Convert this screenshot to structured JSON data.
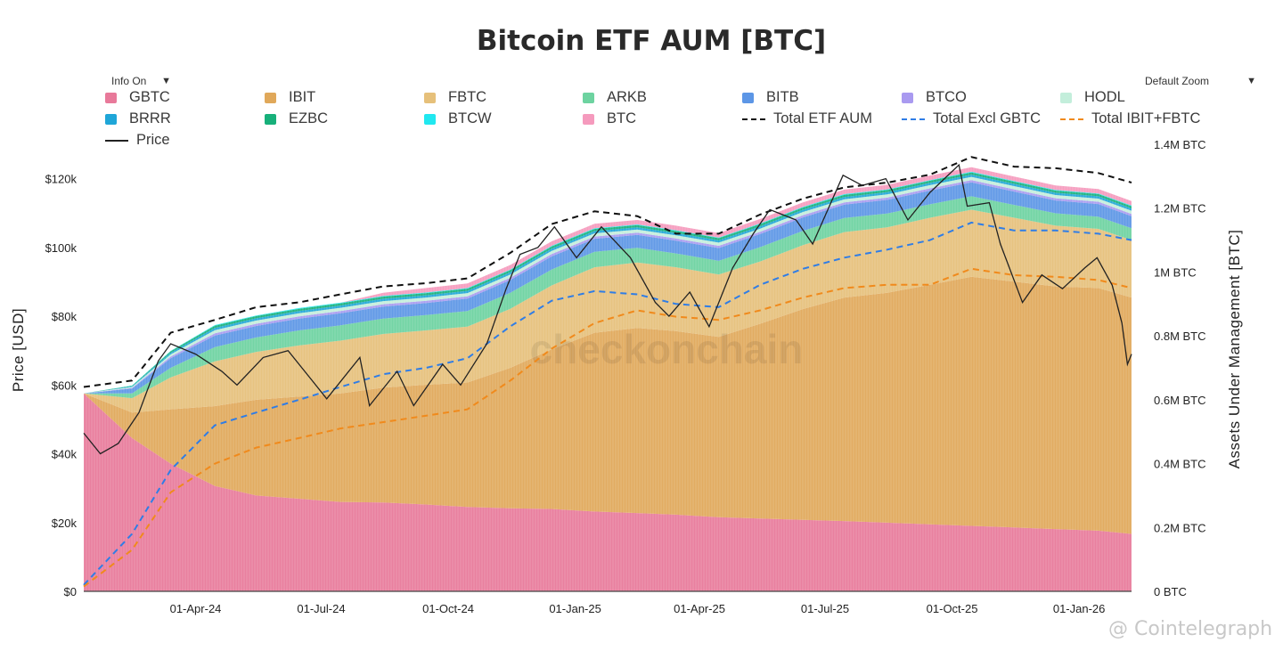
{
  "title": "Bitcoin ETF AUM [BTC]",
  "controls": {
    "info_label": "Info On",
    "zoom_label": "Default Zoom",
    "dropdown_arrow": "▼"
  },
  "watermark": "checkonchain",
  "credit": "@ Cointelegraph",
  "legend": [
    {
      "name": "GBTC",
      "kind": "box",
      "color": "#e8799a"
    },
    {
      "name": "IBIT",
      "kind": "box",
      "color": "#e0a85a"
    },
    {
      "name": "FBTC",
      "kind": "box",
      "color": "#e6c07a"
    },
    {
      "name": "ARKB",
      "kind": "box",
      "color": "#6dd3a0"
    },
    {
      "name": "BITB",
      "kind": "box",
      "color": "#5c96e6"
    },
    {
      "name": "BTCO",
      "kind": "box",
      "color": "#a99af0"
    },
    {
      "name": "HODL",
      "kind": "box",
      "color": "#c3eedb"
    },
    {
      "name": "BRRR",
      "kind": "box",
      "color": "#1fa6d8"
    },
    {
      "name": "EZBC",
      "kind": "box",
      "color": "#17b07a"
    },
    {
      "name": "BTCW",
      "kind": "box",
      "color": "#20e8f0"
    },
    {
      "name": "BTC",
      "kind": "box",
      "color": "#f59abd"
    },
    {
      "name": "Total ETF AUM",
      "kind": "dash",
      "color": "#111111"
    },
    {
      "name": "Total Excl GBTC",
      "kind": "dash",
      "color": "#2f7de6"
    },
    {
      "name": "Total IBIT+FBTC",
      "kind": "dash",
      "color": "#f08a1c"
    },
    {
      "name": "Price",
      "kind": "solid",
      "color": "#222222"
    }
  ],
  "chart_data": {
    "type": "area",
    "title": "Bitcoin ETF AUM [BTC]",
    "ylabel_left": "Price [USD]",
    "ylabel_right": "Assets Under Management [BTC]",
    "ylim_left": [
      0,
      130000
    ],
    "ylim_right": [
      0,
      1400000
    ],
    "left_ticks": [
      "$0",
      "$20k",
      "$40k",
      "$60k",
      "$80k",
      "$100k",
      "$120k"
    ],
    "right_ticks": [
      "0 BTC",
      "0.2M BTC",
      "0.4M BTC",
      "0.6M BTC",
      "0.8M BTC",
      "1M BTC",
      "1.2M BTC",
      "1.4M BTC"
    ],
    "x_ticks": [
      {
        "label": "01-Apr-24",
        "date": "2024-04-01"
      },
      {
        "label": "01-Jul-24",
        "date": "2024-07-01"
      },
      {
        "label": "01-Oct-24",
        "date": "2024-10-01"
      },
      {
        "label": "01-Jan-25",
        "date": "2025-01-01"
      },
      {
        "label": "01-Apr-25",
        "date": "2025-04-01"
      },
      {
        "label": "01-Jul-25",
        "date": "2025-07-01"
      },
      {
        "label": "01-Oct-25",
        "date": "2025-10-01"
      },
      {
        "label": "01-Jan-26",
        "date": "2026-01-01"
      }
    ],
    "x_start": "2024-01-11",
    "x_end": "2026-02-08",
    "dates": [
      "2024-01-11",
      "2024-02-15",
      "2024-03-14",
      "2024-04-15",
      "2024-05-15",
      "2024-06-15",
      "2024-07-15",
      "2024-08-15",
      "2024-09-15",
      "2024-10-15",
      "2024-11-15",
      "2024-12-15",
      "2025-01-15",
      "2025-02-15",
      "2025-03-15",
      "2025-04-15",
      "2025-05-15",
      "2025-06-15",
      "2025-07-15",
      "2025-08-15",
      "2025-09-15",
      "2025-10-15",
      "2025-11-15",
      "2025-12-15",
      "2026-01-15",
      "2026-02-08"
    ],
    "series": [
      {
        "name": "GBTC",
        "color": "#e8799a",
        "values": [
          620000,
          480000,
          400000,
          330000,
          300000,
          290000,
          280000,
          278000,
          272000,
          264000,
          260000,
          258000,
          250000,
          245000,
          240000,
          232000,
          228000,
          224000,
          220000,
          215000,
          210000,
          205000,
          200000,
          195000,
          190000,
          180000
        ]
      },
      {
        "name": "IBIT",
        "color": "#e0a85a",
        "values": [
          0,
          80000,
          170000,
          250000,
          300000,
          320000,
          340000,
          360000,
          375000,
          390000,
          440000,
          500000,
          560000,
          580000,
          575000,
          565000,
          610000,
          660000,
          700000,
          720000,
          750000,
          780000,
          770000,
          760000,
          760000,
          740000
        ]
      },
      {
        "name": "FBTC",
        "color": "#e6c07a",
        "values": [
          0,
          45000,
          100000,
          140000,
          150000,
          160000,
          165000,
          168000,
          170000,
          175000,
          185000,
          200000,
          205000,
          205000,
          200000,
          195000,
          195000,
          200000,
          205000,
          205000,
          210000,
          210000,
          200000,
          190000,
          185000,
          180000
        ]
      },
      {
        "name": "ARKB",
        "color": "#6dd3a0",
        "values": [
          0,
          15000,
          30000,
          45000,
          45000,
          47000,
          48000,
          48000,
          48000,
          49000,
          50000,
          50000,
          48000,
          46000,
          43000,
          43000,
          45000,
          45000,
          44000,
          43000,
          42000,
          42000,
          40000,
          39000,
          38000,
          37000
        ]
      },
      {
        "name": "BITB",
        "color": "#5c96e6",
        "values": [
          0,
          15000,
          30000,
          36000,
          36000,
          37000,
          38000,
          38000,
          38000,
          39000,
          40000,
          41000,
          41000,
          40000,
          40000,
          40000,
          41000,
          42000,
          42000,
          43000,
          43000,
          44000,
          42000,
          40000,
          40000,
          38000
        ]
      },
      {
        "name": "BTCO",
        "color": "#a99af0",
        "values": [
          0,
          2000,
          5000,
          7000,
          7000,
          7000,
          7000,
          7000,
          7000,
          7000,
          7000,
          7000,
          7000,
          7000,
          7000,
          7000,
          7000,
          7000,
          7000,
          7000,
          7000,
          7000,
          7000,
          7000,
          7000,
          7000
        ]
      },
      {
        "name": "HODL",
        "color": "#c3eedb",
        "values": [
          0,
          3000,
          7000,
          10000,
          10000,
          10000,
          10000,
          10000,
          10000,
          10000,
          10000,
          10000,
          10000,
          10000,
          10000,
          10000,
          10000,
          10000,
          10000,
          10000,
          10000,
          10000,
          10000,
          10000,
          10000,
          10000
        ]
      },
      {
        "name": "BRRR",
        "color": "#1fa6d8",
        "values": [
          0,
          2000,
          5000,
          7000,
          7000,
          7000,
          7000,
          7000,
          7000,
          7000,
          7000,
          7000,
          7000,
          7000,
          7000,
          7000,
          7000,
          7000,
          7000,
          7000,
          7000,
          7000,
          7000,
          7000,
          7000,
          7000
        ]
      },
      {
        "name": "EZBC",
        "color": "#17b07a",
        "values": [
          0,
          2000,
          5000,
          7000,
          7000,
          7000,
          7000,
          7000,
          7000,
          7000,
          7000,
          7000,
          7000,
          7000,
          7000,
          7000,
          7000,
          7000,
          7000,
          7000,
          7000,
          7000,
          7000,
          7000,
          7000,
          7000
        ]
      },
      {
        "name": "BTCW",
        "color": "#20e8f0",
        "values": [
          0,
          500,
          1000,
          2000,
          2000,
          2000,
          2000,
          2000,
          2000,
          2000,
          2000,
          2000,
          2000,
          2000,
          2000,
          2000,
          2000,
          2000,
          2000,
          2000,
          2000,
          2000,
          2000,
          2000,
          2000,
          2000
        ]
      },
      {
        "name": "BTC",
        "color": "#f59abd",
        "values": [
          0,
          0,
          0,
          0,
          0,
          0,
          0,
          10000,
          14000,
          14000,
          14000,
          14000,
          14000,
          14000,
          14000,
          14000,
          14000,
          14000,
          14000,
          14000,
          14000,
          14000,
          14000,
          14000,
          14000,
          14000
        ]
      }
    ],
    "lines": [
      {
        "name": "Total ETF AUM",
        "color": "#111111",
        "dates": [
          "2024-01-11",
          "2024-02-15",
          "2024-03-14",
          "2024-04-15",
          "2024-05-15",
          "2024-06-15",
          "2024-07-15",
          "2024-08-15",
          "2024-09-15",
          "2024-10-15",
          "2024-11-15",
          "2024-12-15",
          "2025-01-15",
          "2025-02-15",
          "2025-03-15",
          "2025-04-15",
          "2025-05-15",
          "2025-06-15",
          "2025-07-15",
          "2025-08-15",
          "2025-09-15",
          "2025-10-15",
          "2025-11-15",
          "2025-12-15",
          "2026-01-15",
          "2026-02-08"
        ],
        "values": [
          640000,
          660000,
          810000,
          850000,
          890000,
          905000,
          930000,
          955000,
          965000,
          980000,
          1060000,
          1150000,
          1190000,
          1175000,
          1120000,
          1120000,
          1180000,
          1230000,
          1265000,
          1280000,
          1305000,
          1360000,
          1330000,
          1325000,
          1310000,
          1280000
        ]
      },
      {
        "name": "Total Excl GBTC",
        "color": "#2f7de6",
        "values": [
          20000,
          180000,
          380000,
          520000,
          560000,
          600000,
          640000,
          680000,
          700000,
          730000,
          830000,
          910000,
          940000,
          930000,
          900000,
          890000,
          960000,
          1010000,
          1045000,
          1070000,
          1100000,
          1155000,
          1130000,
          1130000,
          1120000,
          1100000
        ]
      },
      {
        "name": "Total IBIT+FBTC",
        "color": "#f08a1c",
        "values": [
          15000,
          130000,
          310000,
          400000,
          450000,
          480000,
          510000,
          530000,
          550000,
          570000,
          660000,
          760000,
          840000,
          880000,
          860000,
          850000,
          880000,
          920000,
          950000,
          960000,
          960000,
          1010000,
          990000,
          985000,
          975000,
          950000
        ]
      }
    ],
    "price": {
      "name": "Price",
      "color": "#222222",
      "dates": [
        "2024-01-11",
        "2024-01-23",
        "2024-02-05",
        "2024-02-20",
        "2024-03-05",
        "2024-03-14",
        "2024-04-01",
        "2024-04-20",
        "2024-05-01",
        "2024-05-20",
        "2024-06-07",
        "2024-06-25",
        "2024-07-05",
        "2024-07-29",
        "2024-08-05",
        "2024-08-25",
        "2024-09-06",
        "2024-09-27",
        "2024-10-10",
        "2024-10-29",
        "2024-11-12",
        "2024-11-22",
        "2024-12-05",
        "2024-12-17",
        "2025-01-02",
        "2025-01-20",
        "2025-02-10",
        "2025-02-28",
        "2025-03-10",
        "2025-03-25",
        "2025-04-08",
        "2025-04-25",
        "2025-05-10",
        "2025-05-22",
        "2025-06-10",
        "2025-06-22",
        "2025-07-14",
        "2025-07-28",
        "2025-08-14",
        "2025-08-30",
        "2025-09-15",
        "2025-10-06",
        "2025-10-12",
        "2025-10-28",
        "2025-11-05",
        "2025-11-21",
        "2025-12-05",
        "2025-12-20",
        "2026-01-05",
        "2026-01-14",
        "2026-01-25",
        "2026-02-01",
        "2026-02-05",
        "2026-02-08"
      ],
      "values": [
        46000,
        40000,
        43000,
        52000,
        67000,
        72000,
        69000,
        64000,
        60000,
        68000,
        70000,
        61000,
        56000,
        68000,
        54000,
        64000,
        54000,
        66000,
        60000,
        72000,
        88000,
        98000,
        100000,
        106000,
        97000,
        106000,
        97000,
        84000,
        80000,
        87000,
        77000,
        94000,
        104000,
        111000,
        108000,
        101000,
        121000,
        118000,
        120000,
        108000,
        116000,
        124000,
        112000,
        113000,
        101000,
        84000,
        92000,
        88000,
        94000,
        97000,
        89000,
        78000,
        66000,
        69000
      ]
    }
  }
}
